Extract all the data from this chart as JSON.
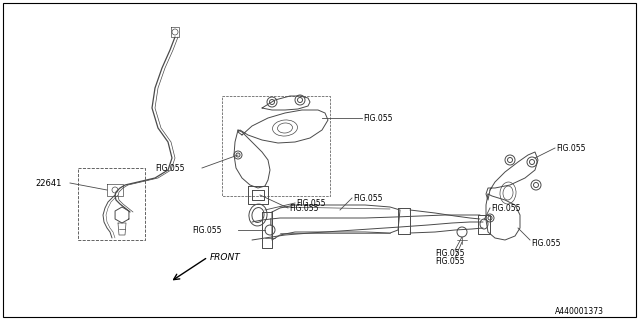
{
  "background_color": "#ffffff",
  "line_color": "#4a4a4a",
  "dashed_color": "#4a4a4a",
  "fig_label": "FIG.055",
  "part_label": "22641",
  "front_label": "FRONT",
  "part_num_label": "A440001373",
  "figsize": [
    6.4,
    3.2
  ],
  "dpi": 100,
  "lw": 0.7,
  "lw_thin": 0.5
}
